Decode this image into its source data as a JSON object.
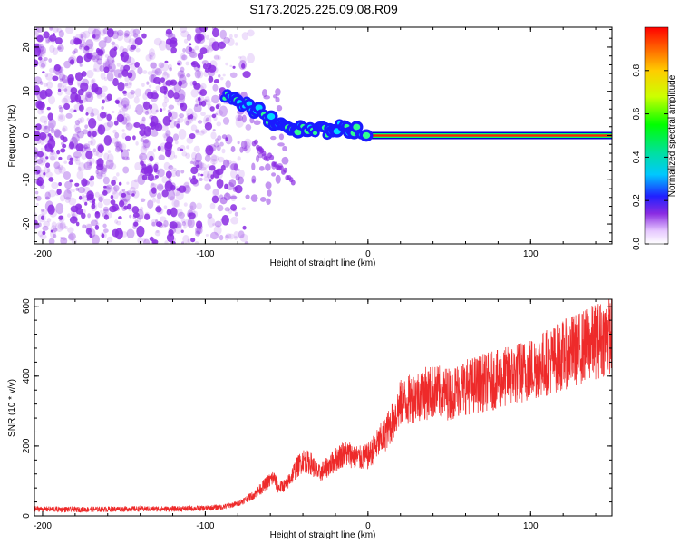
{
  "page": {
    "title": "S173.2025.225.09.08.R09"
  },
  "colors": {
    "axis": "#000000",
    "noise": "#8a2be2",
    "snr_line": "#ee2a2a"
  },
  "chart_data": [
    {
      "id": "spectrogram",
      "type": "heatmap",
      "title": "",
      "xlabel": "Height of straight line (km)",
      "ylabel": "Frequency (Hz)",
      "xlim": [
        -205,
        150
      ],
      "ylim": [
        -24.5,
        24.5
      ],
      "xticks": [
        -200,
        -100,
        0,
        100
      ],
      "yticks": [
        20,
        10,
        0,
        -10,
        -20
      ],
      "grid": false,
      "description_series": [
        {
          "name": "noise region",
          "x_range": [
            -205,
            -90
          ],
          "freq_range": [
            -24.5,
            24.5
          ]
        },
        {
          "name": "signal track",
          "points": [
            [
              -88,
              9
            ],
            [
              -80,
              8
            ],
            [
              -70,
              6
            ],
            [
              -62,
              4
            ],
            [
              -55,
              2.5
            ],
            [
              -45,
              1.5
            ],
            [
              -35,
              1.5
            ],
            [
              -25,
              1
            ],
            [
              -15,
              2
            ],
            [
              -8,
              1
            ],
            [
              0,
              0
            ],
            [
              150,
              0
            ]
          ]
        }
      ],
      "colorbar": {
        "label": "Normalized spectral amplitude",
        "ticks": [
          0.0,
          0.2,
          0.4,
          0.6,
          0.8
        ],
        "tick_labels": [
          "0.0",
          "0.2",
          "0.4",
          "0.6",
          "0.8"
        ],
        "range": [
          0.0,
          1.0
        ]
      }
    },
    {
      "id": "snr",
      "type": "line",
      "title": "",
      "xlabel": "Height of straight line (km)",
      "ylabel": "SNR (10 * v/v)",
      "xlim": [
        -205,
        150
      ],
      "ylim": [
        0,
        620
      ],
      "xticks": [
        -200,
        -100,
        0,
        100
      ],
      "yticks": [
        0,
        200,
        400,
        600
      ],
      "grid": false,
      "series": [
        {
          "name": "SNR",
          "x": [
            -205,
            -180,
            -150,
            -120,
            -100,
            -90,
            -80,
            -70,
            -62,
            -58,
            -55,
            -50,
            -45,
            -40,
            -35,
            -30,
            -25,
            -20,
            -15,
            -10,
            -5,
            0,
            5,
            10,
            15,
            20,
            25,
            30,
            40,
            50,
            60,
            70,
            80,
            90,
            100,
            110,
            120,
            130,
            140,
            150
          ],
          "values": [
            20,
            18,
            20,
            20,
            22,
            25,
            35,
            60,
            95,
            110,
            80,
            90,
            130,
            160,
            150,
            120,
            140,
            160,
            180,
            175,
            165,
            170,
            200,
            230,
            270,
            320,
            330,
            345,
            355,
            350,
            370,
            380,
            390,
            405,
            420,
            440,
            460,
            480,
            500,
            520
          ]
        }
      ]
    }
  ]
}
